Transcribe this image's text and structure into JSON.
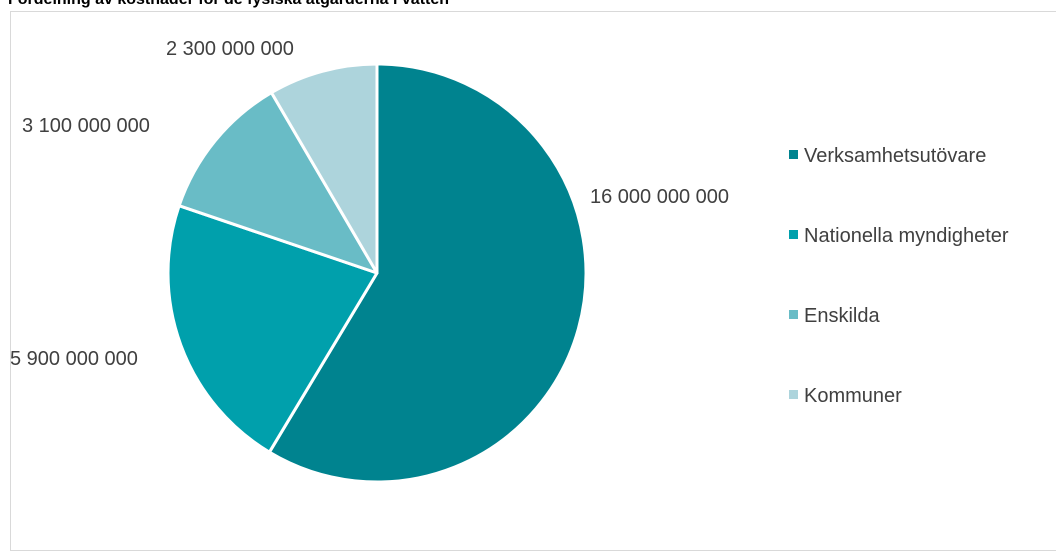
{
  "chart_data": {
    "type": "pie",
    "title": "Fördelning av kostnader för de fysiska åtgärderna i vatten",
    "categories": [
      "Verksamhetsutövare",
      "Nationella myndigheter",
      "Enskilda",
      "Kommuner"
    ],
    "values": [
      16000000000,
      5900000000,
      3100000000,
      2300000000
    ],
    "data_labels": [
      "16 000 000 000",
      "5 900 000 000",
      "3 100 000 000",
      "2 300 000 000"
    ],
    "colors": [
      "#00838f",
      "#00a0ac",
      "#69bcc6",
      "#add4dc"
    ],
    "legend_position": "right",
    "start_angle": "12 o'clock",
    "direction": "clockwise"
  }
}
